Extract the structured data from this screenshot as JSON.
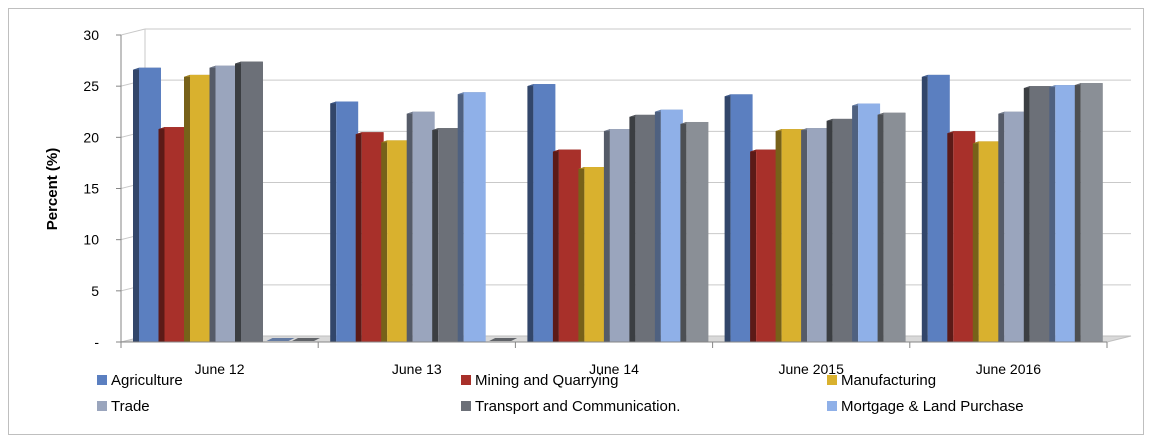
{
  "chart_data": {
    "type": "bar",
    "ylabel": "Percent (%)",
    "ylim": [
      0,
      30
    ],
    "y_ticks": [
      {
        "value": 0,
        "label": "-"
      },
      {
        "value": 5,
        "label": "5"
      },
      {
        "value": 10,
        "label": "10"
      },
      {
        "value": 15,
        "label": "15"
      },
      {
        "value": 20,
        "label": "20"
      },
      {
        "value": 25,
        "label": "25"
      },
      {
        "value": 30,
        "label": "30"
      }
    ],
    "grid": true,
    "legend_position": "bottom",
    "categories": [
      "June 12",
      "June 13",
      "June 14",
      "June 2015",
      "June 2016"
    ],
    "series": [
      {
        "name": "Agriculture",
        "color": "#5b7fc0",
        "values": [
          26.8,
          23.5,
          25.2,
          24.2,
          26.1
        ]
      },
      {
        "name": "Mining and Quarrying",
        "color": "#a8302a",
        "values": [
          21.0,
          20.5,
          18.8,
          18.8,
          20.6
        ]
      },
      {
        "name": "Manufacturing",
        "color": "#d9b12e",
        "values": [
          26.1,
          19.7,
          17.1,
          20.8,
          19.6
        ]
      },
      {
        "name": "Trade",
        "color": "#9aa5bd",
        "values": [
          27.0,
          22.5,
          20.8,
          20.9,
          22.5
        ]
      },
      {
        "name": "Transport and Communication.",
        "color": "#6c7078",
        "values": [
          27.4,
          20.9,
          22.2,
          21.8,
          25.0
        ]
      },
      {
        "name": "Mortgage & Land Purchase",
        "color": "#8fb0e8",
        "values": [
          0,
          24.4,
          22.7,
          23.3,
          25.1
        ]
      },
      {
        "name": "",
        "color": "#8a8f96",
        "values": [
          0,
          0,
          21.5,
          22.4,
          25.3
        ]
      }
    ]
  }
}
